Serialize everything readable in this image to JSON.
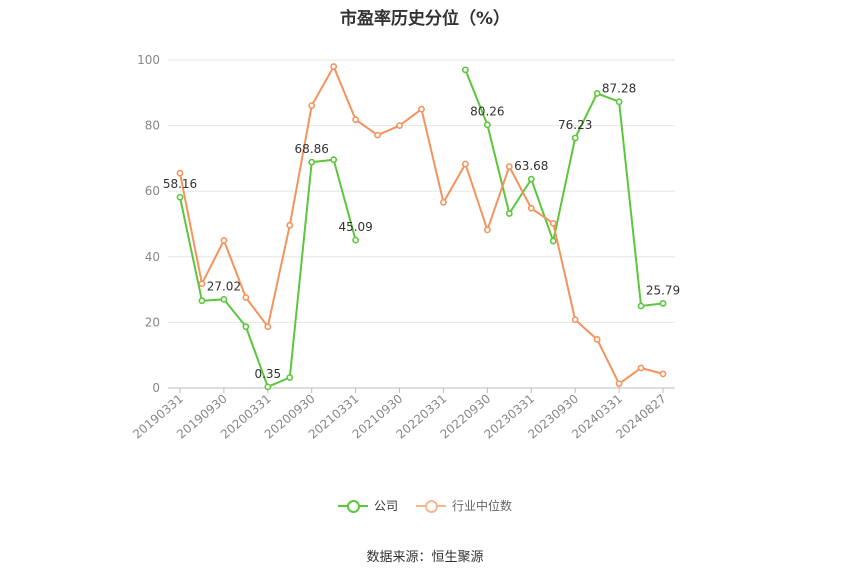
{
  "chart_data": {
    "type": "line",
    "title": "市盈率历史分位（%）",
    "x": [
      "20190331",
      "20190630",
      "20190930",
      "20191231",
      "20200331",
      "20200630",
      "20200930",
      "20201231",
      "20210331",
      "20210630",
      "20210930",
      "20211231",
      "20220331",
      "20220630",
      "20220930",
      "20221231",
      "20230331",
      "20230630",
      "20230930",
      "20231231",
      "20240331",
      "20240630",
      "20240827"
    ],
    "xtick_labels": [
      "20190331",
      "20190930",
      "20200331",
      "20200930",
      "20210331",
      "20210930",
      "20220331",
      "20220930",
      "20230331",
      "20230930",
      "20240331",
      "20240827"
    ],
    "ylim": [
      0,
      100
    ],
    "yticks": [
      0,
      20,
      40,
      60,
      80,
      100
    ],
    "grid": true,
    "legend_position": "bottom",
    "series": [
      {
        "name": "公司",
        "color": "#5cc63c",
        "values": [
          58.16,
          26.6,
          27.02,
          18.7,
          0.35,
          3.2,
          68.86,
          69.6,
          45.09,
          null,
          null,
          null,
          null,
          97.0,
          80.26,
          53.2,
          63.68,
          44.8,
          76.23,
          89.8,
          87.28,
          25.0,
          25.79
        ],
        "labels": [
          {
            "index": 0,
            "text": "58.16"
          },
          {
            "index": 2,
            "text": "27.02"
          },
          {
            "index": 4,
            "text": "0.35"
          },
          {
            "index": 6,
            "text": "68.86"
          },
          {
            "index": 8,
            "text": "45.09"
          },
          {
            "index": 14,
            "text": "80.26"
          },
          {
            "index": 16,
            "text": "63.68"
          },
          {
            "index": 18,
            "text": "76.23"
          },
          {
            "index": 20,
            "text": "87.28"
          },
          {
            "index": 22,
            "text": "25.79"
          }
        ]
      },
      {
        "name": "行业中位数",
        "color": "#f4935e",
        "values": [
          65.5,
          31.8,
          45.0,
          27.6,
          18.7,
          49.6,
          86.1,
          98.0,
          81.8,
          77.1,
          80.0,
          85.0,
          56.6,
          68.3,
          48.2,
          67.5,
          54.8,
          50.2,
          20.8,
          14.8,
          1.3,
          6.1,
          4.3
        ]
      }
    ]
  },
  "legend": {
    "company": "公司",
    "industry": "行业中位数"
  },
  "source": "数据来源：恒生聚源"
}
